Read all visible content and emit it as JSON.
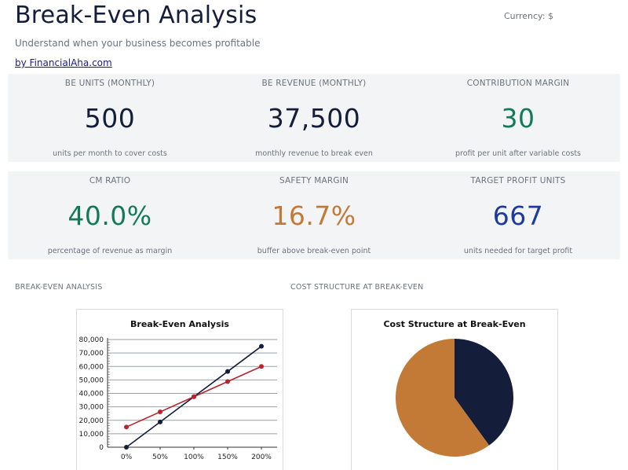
{
  "header": {
    "title": "Break-Even Analysis",
    "currency": "Currency: $",
    "subtitle": "Understand when your business becomes profitable",
    "author_link": "by FinancialAha.com"
  },
  "metrics": [
    {
      "label": "BE UNITS (MONTHLY)",
      "value": "500",
      "desc": "units per month to cover costs",
      "color": "#141d3a"
    },
    {
      "label": "BE REVENUE (MONTHLY)",
      "value": "37,500",
      "desc": "monthly revenue to break even",
      "color": "#141d3a"
    },
    {
      "label": "CONTRIBUTION MARGIN",
      "value": "30",
      "desc": "profit per unit after variable costs",
      "color": "#137a57"
    },
    {
      "label": "CM RATIO",
      "value": "40.0%",
      "desc": "percentage of revenue as margin",
      "color": "#137a57"
    },
    {
      "label": "SAFETY MARGIN",
      "value": "16.7%",
      "desc": "buffer above break-even point",
      "color": "#c27a36"
    },
    {
      "label": "TARGET PROFIT UNITS",
      "value": "667",
      "desc": "units needed for target profit",
      "color": "#1e3a9c"
    }
  ],
  "sections": {
    "line_label": "BREAK-EVEN ANALYSIS",
    "pie_label": "COST STRUCTURE AT BREAK-EVEN"
  },
  "chart_data": [
    {
      "type": "line",
      "title": "Break-Even Analysis",
      "x": [
        "0%",
        "50%",
        "100%",
        "150%",
        "200%"
      ],
      "series": [
        {
          "values": [
            0,
            18750,
            37500,
            56250,
            75000
          ],
          "color": "#141d3a"
        },
        {
          "values": [
            15000,
            26250,
            37500,
            48750,
            60000
          ],
          "color": "#b8232c"
        }
      ],
      "ylim": [
        0,
        80000
      ],
      "yticks": [
        "0",
        "10,000",
        "20,000",
        "30,000",
        "40,000",
        "50,000",
        "60,000",
        "70,000",
        "80,000"
      ],
      "grid": true
    },
    {
      "type": "pie",
      "title": "Cost Structure at Break-Even",
      "slices": [
        {
          "value": 40,
          "color": "#141d3a"
        },
        {
          "value": 60,
          "color": "#c27a36"
        }
      ]
    }
  ]
}
